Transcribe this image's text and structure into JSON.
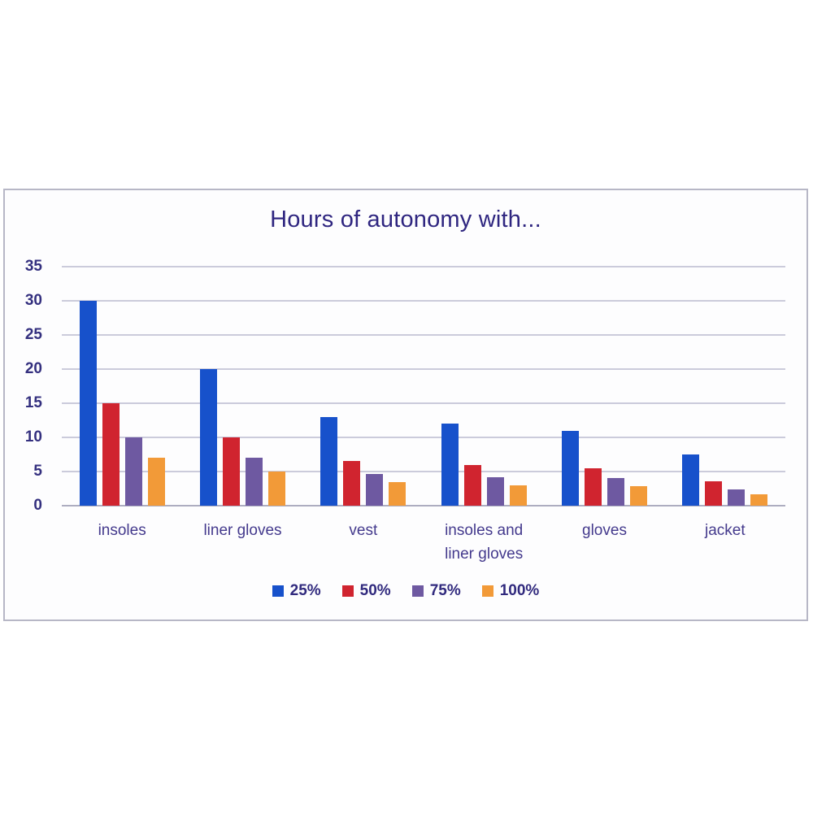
{
  "chart_data": {
    "type": "bar",
    "title": "Hours of autonomy with...",
    "categories": [
      "insoles",
      "liner gloves",
      "vest",
      "insoles and liner gloves",
      "gloves",
      "jacket"
    ],
    "series": [
      {
        "name": "25%",
        "color": "#1751cb",
        "values": [
          30,
          20,
          13,
          12,
          11,
          7.5
        ]
      },
      {
        "name": "50%",
        "color": "#d0242f",
        "values": [
          15,
          10,
          6.5,
          6,
          5.5,
          3.6
        ]
      },
      {
        "name": "75%",
        "color": "#6e59a1",
        "values": [
          10,
          7,
          4.6,
          4.2,
          4.1,
          2.4
        ]
      },
      {
        "name": "100%",
        "color": "#f29a38",
        "values": [
          7,
          5,
          3.5,
          3,
          2.9,
          1.7
        ]
      }
    ],
    "xlabel": "",
    "ylabel": "",
    "ylim": [
      0,
      35
    ],
    "ytick_step": 5,
    "grid": true,
    "legend_position": "bottom"
  },
  "colors": {
    "title_text": "#2f2680",
    "axis_tick_text": "#34307f",
    "category_text": "#443a8d",
    "legend_text": "#312a7e",
    "gridline": "#cbcbdb",
    "panel_border": "#b7b7c6",
    "panel_background": "#fdfdfe",
    "page_background": "#ffffff"
  }
}
